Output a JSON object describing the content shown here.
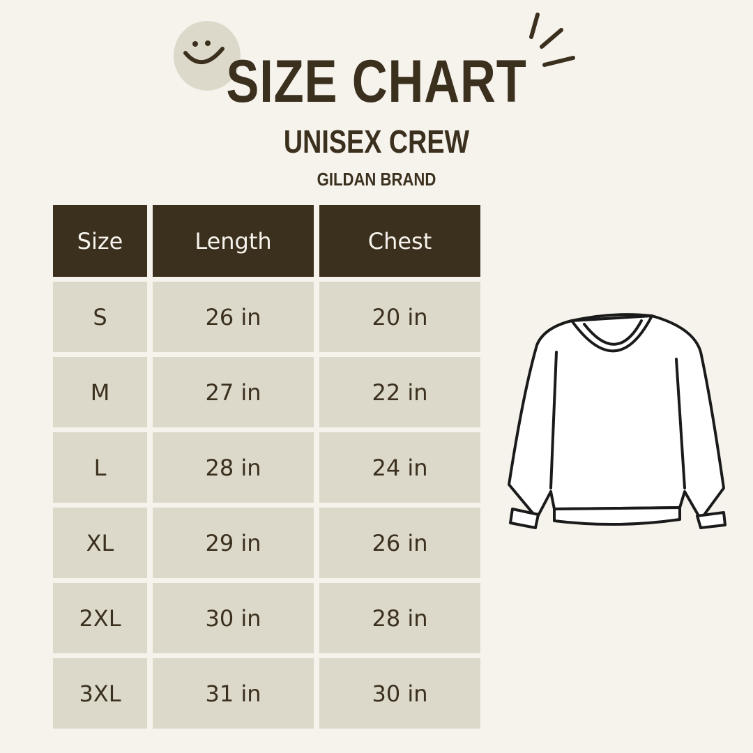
{
  "header": {
    "title": "SIZE CHART",
    "subtitle": "UNISEX CREW",
    "brand": "GILDAN BRAND"
  },
  "colors": {
    "background": "#f6f3ec",
    "dark": "#3b2f1e",
    "cell": "#dcd9cb"
  },
  "icons": [
    "smiley-icon",
    "sparkle-lines-icon",
    "sweatshirt-illustration"
  ],
  "table": {
    "columns": [
      "Size",
      "Length",
      "Chest"
    ],
    "rows": [
      [
        "S",
        "26 in",
        "20 in"
      ],
      [
        "M",
        "27 in",
        "22 in"
      ],
      [
        "L",
        "28 in",
        "24 in"
      ],
      [
        "XL",
        "29 in",
        "26 in"
      ],
      [
        "2XL",
        "30 in",
        "28 in"
      ],
      [
        "3XL",
        "31 in",
        "30 in"
      ]
    ]
  }
}
